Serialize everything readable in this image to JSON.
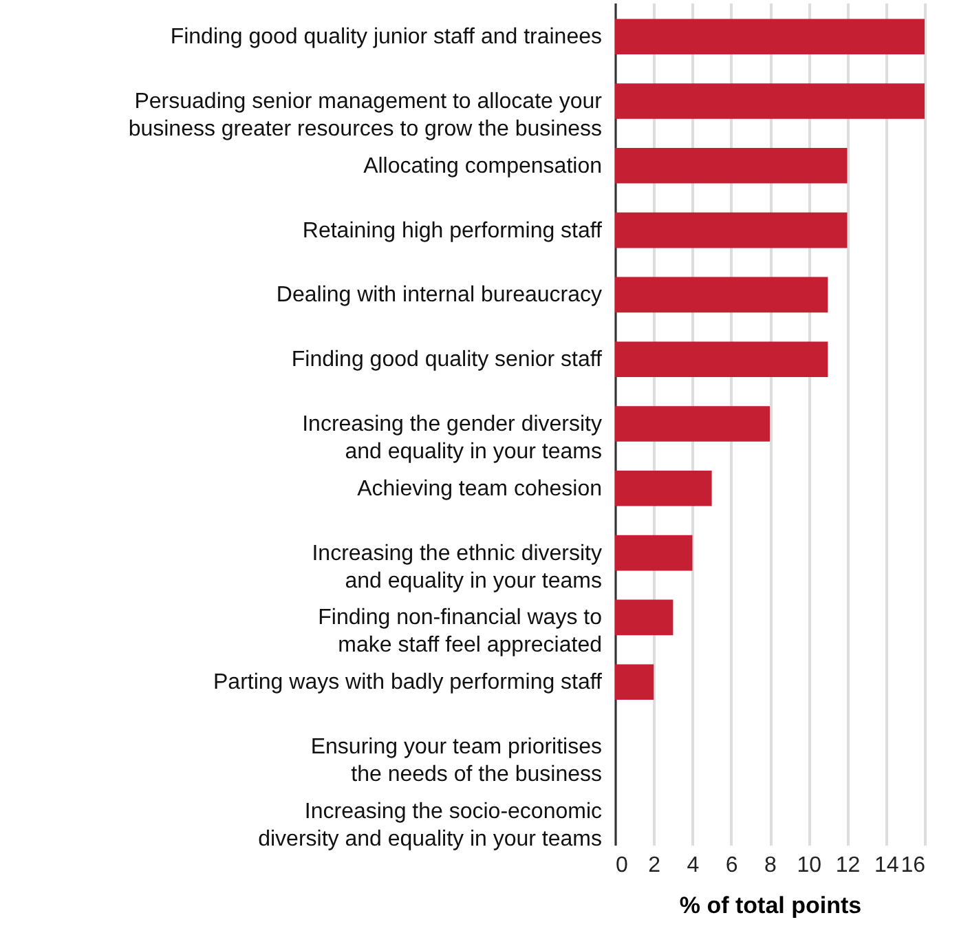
{
  "chart_data": {
    "type": "bar",
    "orientation": "horizontal",
    "xlabel": "% of total points",
    "categories": [
      "Finding good quality junior staff and trainees",
      "Persuading senior management to allocate your\nbusiness greater resources to grow the business",
      "Allocating compensation",
      "Retaining high performing staff",
      "Dealing with internal bureaucracy",
      "Finding good quality senior staff",
      "Increasing the gender diversity\nand equality in your teams",
      "Achieving team cohesion",
      "Increasing the ethnic diversity\nand equality in your teams",
      "Finding non-financial ways to\nmake staff feel appreciated",
      "Parting ways with badly performing staff",
      "Ensuring your team prioritises\nthe needs of the business",
      "Increasing the socio-economic\ndiversity and equality in your teams"
    ],
    "values": [
      16,
      16,
      12,
      12,
      11,
      11,
      8,
      5,
      4,
      3,
      2,
      0,
      0
    ],
    "color": "#c41f33",
    "xlim": [
      0,
      16
    ],
    "xticks": [
      0,
      2,
      4,
      6,
      8,
      10,
      12,
      14,
      16
    ],
    "grid": "x"
  }
}
